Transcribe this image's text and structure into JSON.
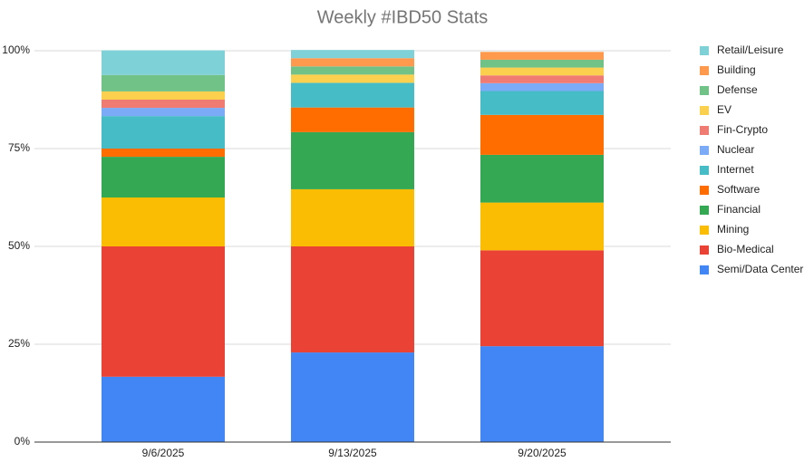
{
  "chart_data": {
    "type": "stacked_bar",
    "title": "Weekly #IBD50 Stats",
    "categories": [
      "9/6/2025",
      "9/13/2025",
      "9/20/2025"
    ],
    "series": [
      {
        "name": "Semi/Data Center",
        "color": "#4285f4",
        "values": [
          16.7,
          22.9,
          24.5
        ]
      },
      {
        "name": "Bio-Medical",
        "color": "#ea4335",
        "values": [
          33.3,
          27.1,
          24.5
        ]
      },
      {
        "name": "Mining",
        "color": "#fbbc04",
        "values": [
          12.5,
          14.6,
          12.2
        ]
      },
      {
        "name": "Financial",
        "color": "#34a853",
        "values": [
          10.4,
          14.6,
          12.2
        ]
      },
      {
        "name": "Software",
        "color": "#ff6d01",
        "values": [
          2.1,
          6.3,
          10.2
        ]
      },
      {
        "name": "Internet",
        "color": "#46bdc6",
        "values": [
          8.3,
          6.3,
          6.1
        ]
      },
      {
        "name": "Nuclear",
        "color": "#7baaf7",
        "values": [
          2.1,
          0,
          2.0
        ]
      },
      {
        "name": "Fin-Crypto",
        "color": "#f07b72",
        "values": [
          2.1,
          0,
          2.0
        ]
      },
      {
        "name": "EV",
        "color": "#fcd04f",
        "values": [
          2.1,
          2.1,
          2.0
        ]
      },
      {
        "name": "Defense",
        "color": "#71c287",
        "values": [
          4.2,
          2.1,
          2.0
        ]
      },
      {
        "name": "Building",
        "color": "#ff994d",
        "values": [
          0,
          2.1,
          2.0
        ]
      },
      {
        "name": "Retail/Leisure",
        "color": "#7ed1d7",
        "values": [
          6.3,
          2.1,
          0
        ]
      }
    ],
    "ylim": [
      0,
      100
    ],
    "yticks": [
      {
        "value": 0,
        "label": "0%"
      },
      {
        "value": 25,
        "label": "25%"
      },
      {
        "value": 50,
        "label": "50%"
      },
      {
        "value": 75,
        "label": "75%"
      },
      {
        "value": 100,
        "label": "100%"
      }
    ],
    "grid": true,
    "legend": "right"
  }
}
